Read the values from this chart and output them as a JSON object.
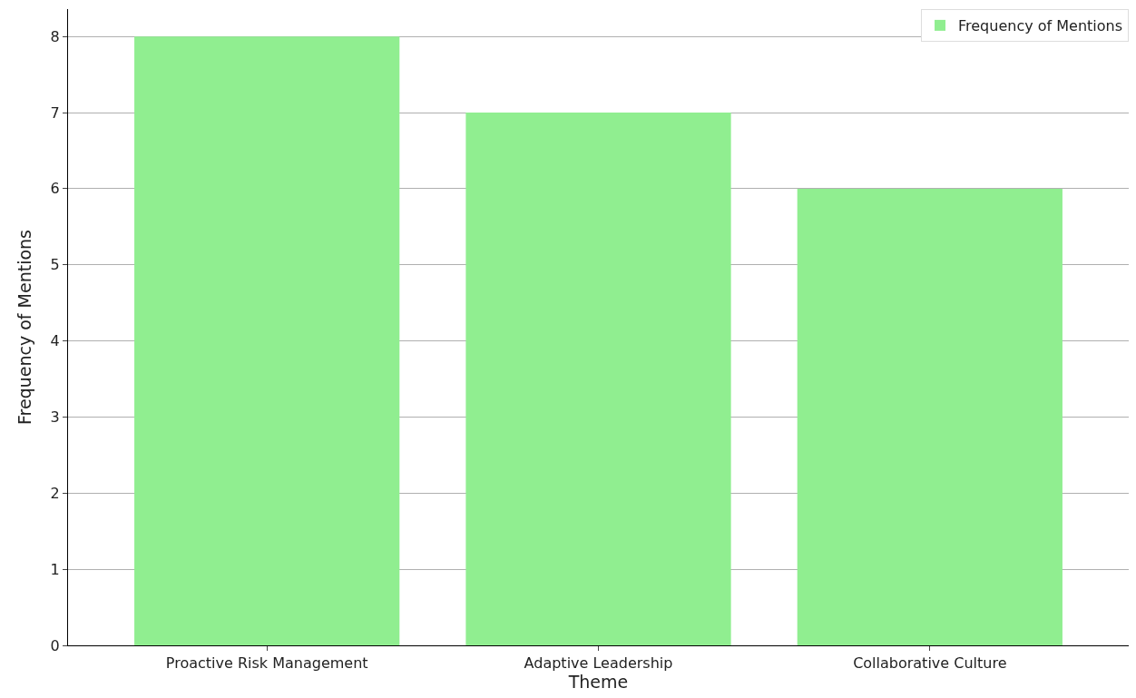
{
  "chart_data": {
    "type": "bar",
    "xlabel": "Theme",
    "ylabel": "Frequency of Mentions",
    "categories": [
      "Proactive Risk Management",
      "Adaptive Leadership",
      "Collaborative Culture"
    ],
    "series": [
      {
        "name": "Frequency of Mentions",
        "color": "#90ee90",
        "values": [
          8,
          7,
          6
        ]
      }
    ],
    "ylim": [
      0,
      8.36
    ],
    "yticks": [
      0,
      1,
      2,
      3,
      4,
      5,
      6,
      7,
      8
    ],
    "grid": "y",
    "legend": "top right"
  }
}
